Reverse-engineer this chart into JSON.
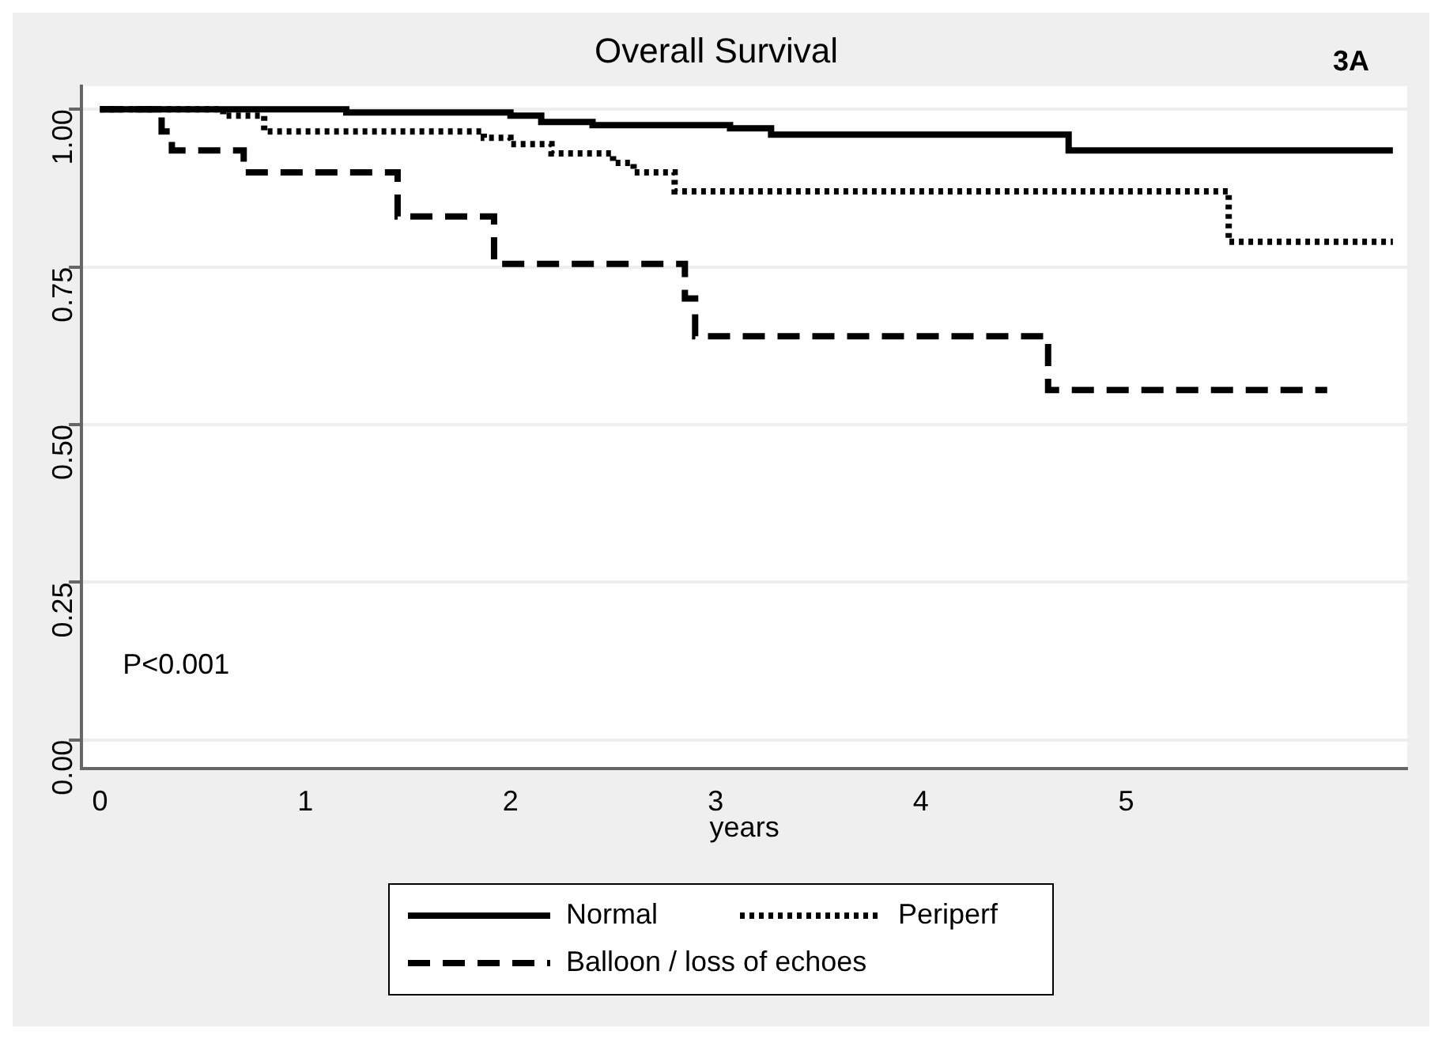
{
  "chart_data": {
    "type": "step",
    "title": "Overall Survival",
    "xlabel": "years",
    "annotations": [
      "3A",
      "P<0.001"
    ],
    "xlim": [
      -0.09,
      6.37
    ],
    "xticks": [
      0,
      1,
      2,
      3,
      4,
      5
    ],
    "ylim": [
      -0.045,
      1.037
    ],
    "yticks": [
      {
        "value": 0,
        "label": "0.00"
      },
      {
        "value": 0.25,
        "label": "0.25"
      },
      {
        "value": 0.5,
        "label": "0.50"
      },
      {
        "value": 0.75,
        "label": "0.75"
      },
      {
        "value": 1,
        "label": "1.00"
      }
    ],
    "grid": "y",
    "legend": "bottom",
    "marker": "none",
    "series": [
      {
        "name": "Normal",
        "color": "#000000",
        "line_style": "solid",
        "x": [
          0,
          1.2,
          2.0,
          2.15,
          2.4,
          3.07,
          3.27,
          4.72,
          6.3
        ],
        "values": [
          1.0,
          0.995,
          0.99,
          0.98,
          0.975,
          0.97,
          0.96,
          0.935,
          0.935
        ]
      },
      {
        "name": "Periperf",
        "color": "#000000",
        "line_style": "dotted",
        "x": [
          0,
          0.6,
          0.8,
          1.87,
          2.0,
          2.2,
          2.5,
          2.6,
          2.8,
          5.5,
          6.3
        ],
        "values": [
          1.0,
          0.99,
          0.965,
          0.955,
          0.945,
          0.93,
          0.915,
          0.9,
          0.87,
          0.79,
          0.79
        ]
      },
      {
        "name": "Balloon / loss of echoes",
        "color": "#000000",
        "line_style": "dashed",
        "x": [
          0,
          0.3,
          0.35,
          0.7,
          1.45,
          1.92,
          2.85,
          2.9,
          4.62,
          5.98
        ],
        "values": [
          1.0,
          0.965,
          0.935,
          0.9,
          0.83,
          0.755,
          0.7,
          0.64,
          0.555,
          0.555
        ]
      }
    ]
  }
}
